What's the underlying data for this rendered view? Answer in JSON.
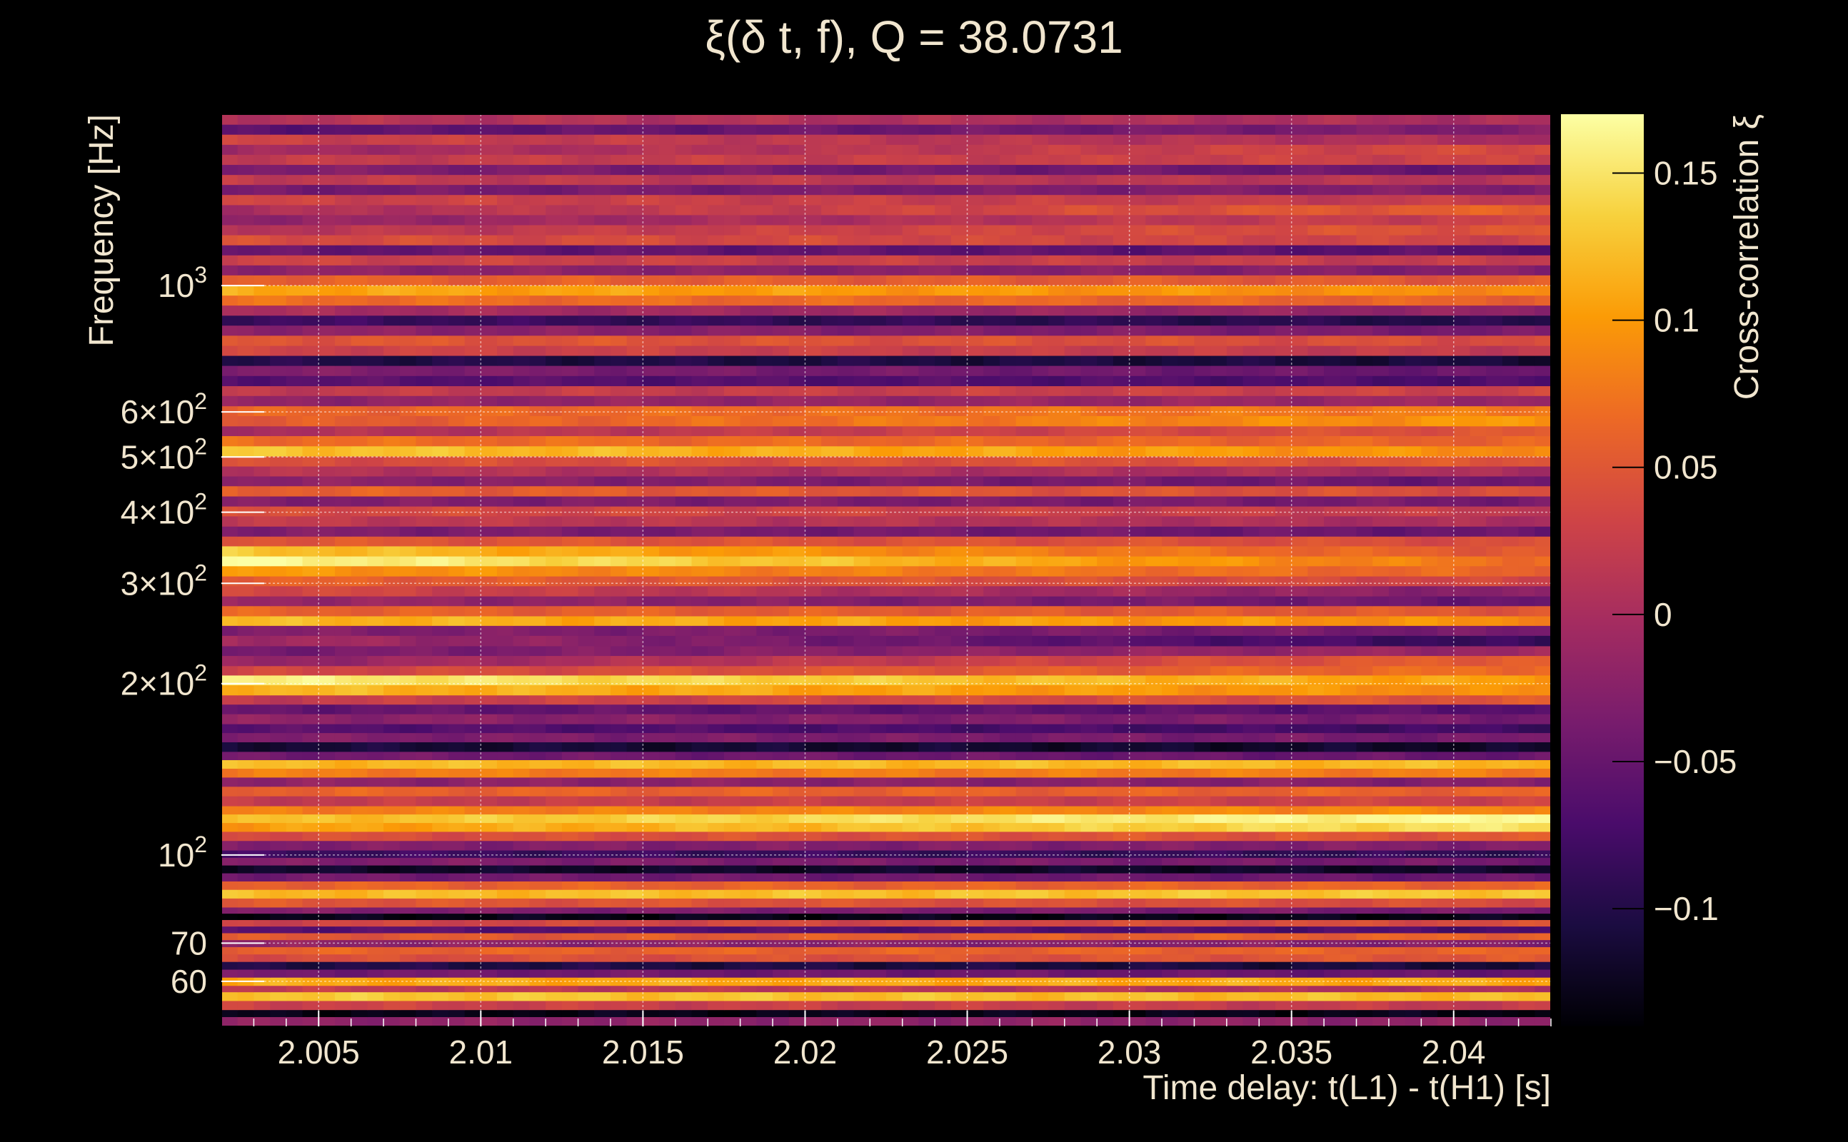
{
  "chart_data": {
    "type": "heatmap",
    "title": "ξ(δ t, f), Q = 38.0731",
    "xlabel": "Time delay: t(L1) - t(H1) [s]",
    "ylabel": "Frequency [Hz]",
    "colorbar_label": "Cross-correlation ξ",
    "xlim": [
      2.002,
      2.043
    ],
    "ylim": [
      50,
      2000
    ],
    "y_scale": "log",
    "clim": [
      -0.14,
      0.17
    ],
    "grid": true,
    "colormap": [
      "#000004",
      "#1b0c41",
      "#4a0c6b",
      "#781c6d",
      "#a52c60",
      "#cf4446",
      "#ed6925",
      "#fb9b06",
      "#f7d13d",
      "#fcffa4"
    ],
    "x_ticks": [
      {
        "value": 2.005,
        "label": "2.005"
      },
      {
        "value": 2.01,
        "label": "2.01"
      },
      {
        "value": 2.015,
        "label": "2.015"
      },
      {
        "value": 2.02,
        "label": "2.02"
      },
      {
        "value": 2.025,
        "label": "2.025"
      },
      {
        "value": 2.03,
        "label": "2.03"
      },
      {
        "value": 2.035,
        "label": "2.035"
      },
      {
        "value": 2.04,
        "label": "2.04"
      }
    ],
    "y_ticks": [
      {
        "value": 60,
        "label": "60"
      },
      {
        "value": 70,
        "label": "70"
      },
      {
        "value": 100,
        "label": "10",
        "sup": "2"
      },
      {
        "value": 200,
        "label": "2×10",
        "sup": "2"
      },
      {
        "value": 300,
        "label": "3×10",
        "sup": "2"
      },
      {
        "value": 400,
        "label": "4×10",
        "sup": "2"
      },
      {
        "value": 500,
        "label": "5×10",
        "sup": "2"
      },
      {
        "value": 600,
        "label": "6×10",
        "sup": "2"
      },
      {
        "value": 1000,
        "label": "10",
        "sup": "3"
      }
    ],
    "colorbar_ticks": [
      {
        "value": 0.15,
        "label": "0.15"
      },
      {
        "value": 0.1,
        "label": "0.1"
      },
      {
        "value": 0.05,
        "label": "0.05"
      },
      {
        "value": 0,
        "label": "0"
      },
      {
        "value": -0.05,
        "label": "−0.05"
      },
      {
        "value": -0.1,
        "label": "−0.1"
      }
    ],
    "frequency_bands": [
      {
        "f": [
          50,
          52
        ],
        "start": -0.02,
        "end": -0.02
      },
      {
        "f": [
          52,
          53.5
        ],
        "start": -0.13,
        "end": -0.13
      },
      {
        "f": [
          53.5,
          55.5
        ],
        "start": 0.03,
        "end": 0.02
      },
      {
        "f": [
          55.5,
          57.5
        ],
        "start": 0.13,
        "end": 0.12
      },
      {
        "f": [
          57.5,
          59
        ],
        "start": 0.02,
        "end": 0.0
      },
      {
        "f": [
          59,
          61
        ],
        "start": 0.11,
        "end": 0.11
      },
      {
        "f": [
          61,
          63
        ],
        "start": -0.04,
        "end": -0.05
      },
      {
        "f": [
          63,
          65
        ],
        "start": -0.1,
        "end": -0.11
      },
      {
        "f": [
          65,
          67
        ],
        "start": 0.04,
        "end": 0.05
      },
      {
        "f": [
          67,
          69
        ],
        "start": 0.06,
        "end": 0.06
      },
      {
        "f": [
          69,
          71
        ],
        "start": -0.02,
        "end": -0.03
      },
      {
        "f": [
          71,
          73
        ],
        "start": 0.05,
        "end": 0.06
      },
      {
        "f": [
          73,
          75
        ],
        "start": -0.06,
        "end": -0.07
      },
      {
        "f": [
          75,
          77
        ],
        "start": 0.03,
        "end": 0.04
      },
      {
        "f": [
          77,
          79
        ],
        "start": -0.13,
        "end": -0.13
      },
      {
        "f": [
          79,
          81
        ],
        "start": -0.03,
        "end": -0.04
      },
      {
        "f": [
          81,
          84
        ],
        "start": 0.05,
        "end": 0.04
      },
      {
        "f": [
          84,
          87
        ],
        "start": 0.12,
        "end": 0.13
      },
      {
        "f": [
          87,
          90
        ],
        "start": 0.06,
        "end": 0.06
      },
      {
        "f": [
          90,
          93
        ],
        "start": -0.04,
        "end": -0.05
      },
      {
        "f": [
          93,
          96
        ],
        "start": -0.12,
        "end": -0.12
      },
      {
        "f": [
          96,
          99
        ],
        "start": -0.03,
        "end": -0.04
      },
      {
        "f": [
          99,
          102
        ],
        "start": -0.08,
        "end": -0.09
      },
      {
        "f": [
          102,
          106
        ],
        "start": -0.03,
        "end": -0.03
      },
      {
        "f": [
          106,
          110
        ],
        "start": 0.04,
        "end": 0.05
      },
      {
        "f": [
          110,
          114
        ],
        "start": 0.1,
        "end": 0.15
      },
      {
        "f": [
          114,
          118
        ],
        "start": 0.12,
        "end": 0.17
      },
      {
        "f": [
          118,
          122
        ],
        "start": 0.08,
        "end": 0.09
      },
      {
        "f": [
          122,
          127
        ],
        "start": 0.02,
        "end": 0.03
      },
      {
        "f": [
          127,
          132
        ],
        "start": 0.06,
        "end": 0.06
      },
      {
        "f": [
          132,
          137
        ],
        "start": -0.02,
        "end": -0.03
      },
      {
        "f": [
          137,
          142
        ],
        "start": 0.08,
        "end": 0.08
      },
      {
        "f": [
          142,
          147
        ],
        "start": 0.12,
        "end": 0.12
      },
      {
        "f": [
          147,
          152
        ],
        "start": -0.04,
        "end": -0.05
      },
      {
        "f": [
          152,
          158
        ],
        "start": -0.11,
        "end": -0.12
      },
      {
        "f": [
          158,
          164
        ],
        "start": -0.03,
        "end": -0.04
      },
      {
        "f": [
          164,
          170
        ],
        "start": -0.06,
        "end": -0.08
      },
      {
        "f": [
          170,
          177
        ],
        "start": -0.02,
        "end": -0.04
      },
      {
        "f": [
          177,
          184
        ],
        "start": -0.05,
        "end": -0.06
      },
      {
        "f": [
          184,
          191
        ],
        "start": 0.02,
        "end": 0.05
      },
      {
        "f": [
          191,
          199
        ],
        "start": 0.12,
        "end": 0.09
      },
      {
        "f": [
          199,
          207
        ],
        "start": 0.16,
        "end": 0.1
      },
      {
        "f": [
          207,
          215
        ],
        "start": 0.03,
        "end": 0.07
      },
      {
        "f": [
          215,
          224
        ],
        "start": -0.02,
        "end": 0.06
      },
      {
        "f": [
          224,
          233
        ],
        "start": -0.04,
        "end": -0.01
      },
      {
        "f": [
          233,
          243
        ],
        "start": 0.0,
        "end": -0.09
      },
      {
        "f": [
          243,
          253
        ],
        "start": -0.03,
        "end": -0.04
      },
      {
        "f": [
          253,
          263
        ],
        "start": 0.12,
        "end": 0.09
      },
      {
        "f": [
          263,
          274
        ],
        "start": 0.06,
        "end": 0.05
      },
      {
        "f": [
          274,
          285
        ],
        "start": -0.01,
        "end": -0.05
      },
      {
        "f": [
          285,
          297
        ],
        "start": 0.04,
        "end": -0.03
      },
      {
        "f": [
          297,
          309
        ],
        "start": 0.06,
        "end": 0.03
      },
      {
        "f": [
          309,
          322
        ],
        "start": 0.1,
        "end": 0.06
      },
      {
        "f": [
          322,
          335
        ],
        "start": 0.17,
        "end": 0.07
      },
      {
        "f": [
          335,
          349
        ],
        "start": 0.13,
        "end": 0.05
      },
      {
        "f": [
          349,
          363
        ],
        "start": 0.05,
        "end": 0.04
      },
      {
        "f": [
          363,
          378
        ],
        "start": -0.03,
        "end": -0.05
      },
      {
        "f": [
          378,
          394
        ],
        "start": 0.02,
        "end": 0.0
      },
      {
        "f": [
          394,
          410
        ],
        "start": 0.04,
        "end": 0.02
      },
      {
        "f": [
          410,
          427
        ],
        "start": -0.03,
        "end": -0.04
      },
      {
        "f": [
          427,
          445
        ],
        "start": 0.06,
        "end": 0.04
      },
      {
        "f": [
          445,
          463
        ],
        "start": -0.02,
        "end": -0.05
      },
      {
        "f": [
          463,
          482
        ],
        "start": 0.01,
        "end": 0.0
      },
      {
        "f": [
          482,
          502
        ],
        "start": 0.04,
        "end": 0.05
      },
      {
        "f": [
          502,
          523
        ],
        "start": 0.13,
        "end": 0.09
      },
      {
        "f": [
          523,
          545
        ],
        "start": 0.07,
        "end": 0.06
      },
      {
        "f": [
          545,
          567
        ],
        "start": 0.0,
        "end": 0.05
      },
      {
        "f": [
          567,
          591
        ],
        "start": 0.05,
        "end": 0.1
      },
      {
        "f": [
          591,
          615
        ],
        "start": 0.06,
        "end": 0.08
      },
      {
        "f": [
          615,
          641
        ],
        "start": -0.02,
        "end": -0.01
      },
      {
        "f": [
          641,
          667
        ],
        "start": 0.02,
        "end": 0.03
      },
      {
        "f": [
          667,
          695
        ],
        "start": -0.06,
        "end": -0.07
      },
      {
        "f": [
          695,
          724
        ],
        "start": -0.03,
        "end": -0.05
      },
      {
        "f": [
          724,
          754
        ],
        "start": -0.1,
        "end": -0.11
      },
      {
        "f": [
          754,
          785
        ],
        "start": 0.03,
        "end": 0.02
      },
      {
        "f": [
          785,
          818
        ],
        "start": 0.05,
        "end": 0.04
      },
      {
        "f": [
          818,
          852
        ],
        "start": -0.02,
        "end": -0.04
      },
      {
        "f": [
          852,
          887
        ],
        "start": -0.08,
        "end": -0.1
      },
      {
        "f": [
          887,
          924
        ],
        "start": 0.0,
        "end": -0.02
      },
      {
        "f": [
          924,
          962
        ],
        "start": 0.07,
        "end": 0.06
      },
      {
        "f": [
          962,
          1002
        ],
        "start": 0.11,
        "end": 0.09
      },
      {
        "f": [
          1002,
          1044
        ],
        "start": 0.06,
        "end": 0.05
      },
      {
        "f": [
          1044,
          1087
        ],
        "start": -0.02,
        "end": -0.03
      },
      {
        "f": [
          1087,
          1132
        ],
        "start": 0.03,
        "end": 0.02
      },
      {
        "f": [
          1132,
          1179
        ],
        "start": -0.05,
        "end": -0.06
      },
      {
        "f": [
          1179,
          1228
        ],
        "start": 0.04,
        "end": 0.03
      },
      {
        "f": [
          1228,
          1279
        ],
        "start": 0.01,
        "end": 0.05
      },
      {
        "f": [
          1279,
          1332
        ],
        "start": -0.02,
        "end": 0.03
      },
      {
        "f": [
          1332,
          1387
        ],
        "start": 0.0,
        "end": 0.06
      },
      {
        "f": [
          1387,
          1445
        ],
        "start": 0.03,
        "end": 0.02
      },
      {
        "f": [
          1445,
          1505
        ],
        "start": -0.04,
        "end": -0.03
      },
      {
        "f": [
          1505,
          1567
        ],
        "start": 0.02,
        "end": 0.01
      },
      {
        "f": [
          1567,
          1632
        ],
        "start": -0.03,
        "end": -0.05
      },
      {
        "f": [
          1632,
          1700
        ],
        "start": 0.02,
        "end": 0.03
      },
      {
        "f": [
          1700,
          1770
        ],
        "start": -0.01,
        "end": 0.04
      },
      {
        "f": [
          1770,
          1844
        ],
        "start": 0.03,
        "end": 0.0
      },
      {
        "f": [
          1844,
          1920
        ],
        "start": -0.06,
        "end": -0.03
      },
      {
        "f": [
          1920,
          2000
        ],
        "start": 0.01,
        "end": 0.0
      }
    ]
  }
}
